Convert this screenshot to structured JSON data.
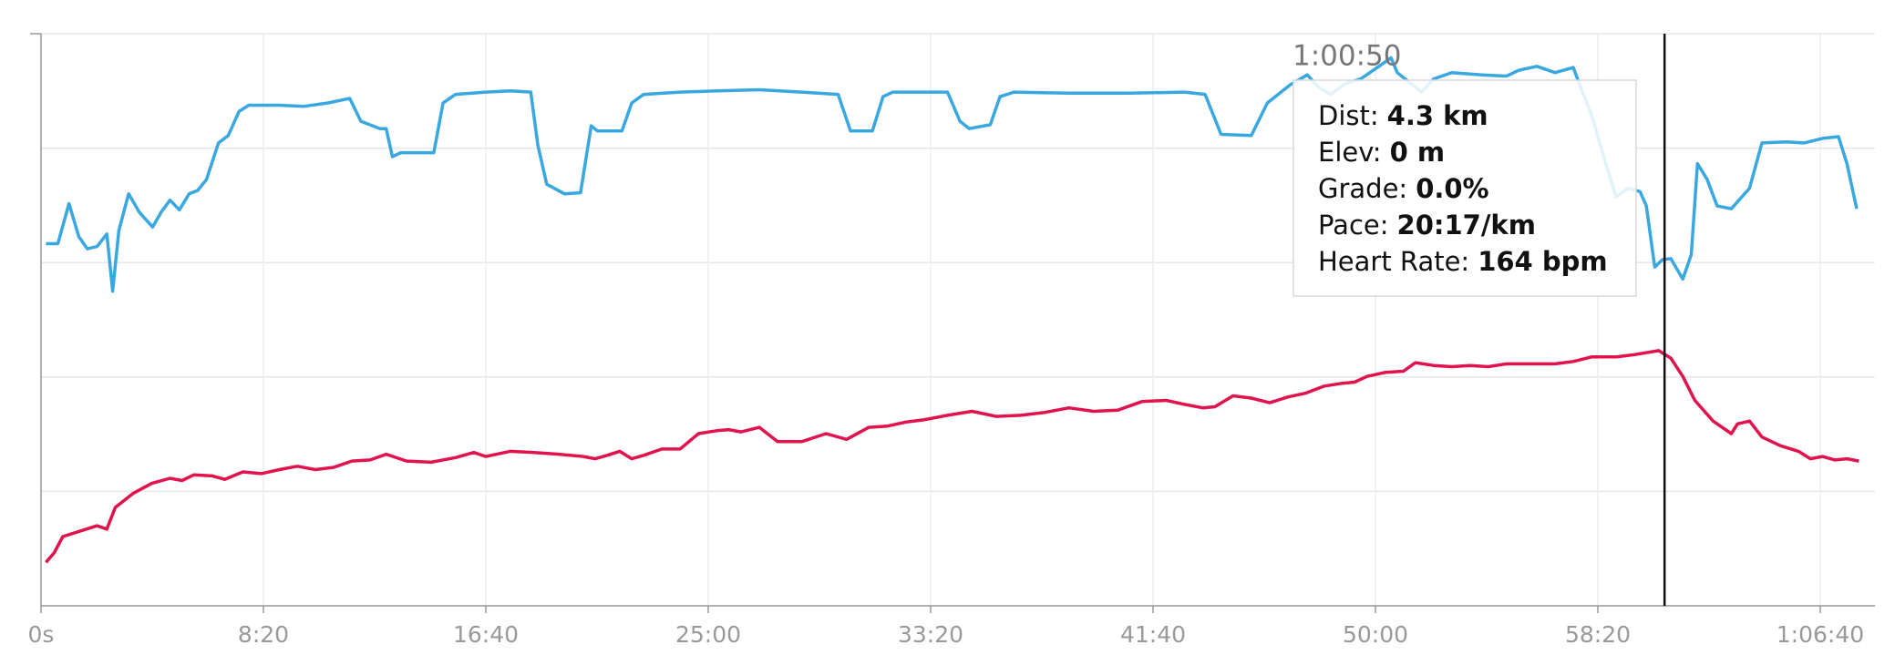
{
  "chart_data": {
    "type": "line",
    "xlim": [
      0,
      4123
    ],
    "ylim": [
      0,
      100
    ],
    "xticks": [
      {
        "value": 0,
        "label": "0s"
      },
      {
        "value": 500,
        "label": "8:20"
      },
      {
        "value": 1000,
        "label": "16:40"
      },
      {
        "value": 1500,
        "label": "25:00"
      },
      {
        "value": 2000,
        "label": "33:20"
      },
      {
        "value": 2500,
        "label": "41:40"
      },
      {
        "value": 3000,
        "label": "50:00"
      },
      {
        "value": 3500,
        "label": "58:20"
      },
      {
        "value": 4000,
        "label": "1:06:40"
      }
    ],
    "yticks": [
      0,
      20,
      40,
      60,
      80,
      100
    ],
    "grid": true,
    "series": [
      {
        "color": "#3aa8e0",
        "x": [
          11,
          38,
          63,
          85,
          104,
          126,
          148,
          161,
          175,
          197,
          221,
          251,
          270,
          290,
          311,
          333,
          352,
          372,
          399,
          421,
          445,
          467,
          536,
          590,
          645,
          694,
          719,
          762,
          776,
          790,
          809,
          883,
          904,
          932,
          1000,
          1055,
          1101,
          1117,
          1137,
          1177,
          1213,
          1237,
          1251,
          1306,
          1328,
          1355,
          1437,
          1519,
          1615,
          1710,
          1792,
          1820,
          1869,
          1893,
          1915,
          2038,
          2066,
          2087,
          2134,
          2156,
          2188,
          2311,
          2448,
          2571,
          2617,
          2653,
          2721,
          2757,
          2809,
          2847,
          2871,
          2899,
          2934,
          2967,
          3008,
          3035,
          3049,
          3076,
          3104,
          3131,
          3172,
          3240,
          3295,
          3322,
          3363,
          3404,
          3445,
          3459,
          3486,
          3514,
          3541,
          3568,
          3595,
          3609,
          3628,
          3645,
          3664,
          3691,
          3710,
          3724,
          3746,
          3768,
          3800,
          3841,
          3869,
          3923,
          3964,
          4005,
          4041,
          4060,
          4082
        ],
        "values": [
          63.3,
          63.3,
          70.3,
          64.5,
          62.4,
          62.8,
          65.0,
          55.0,
          65.6,
          72.0,
          68.8,
          66.2,
          68.8,
          70.9,
          69.2,
          72.0,
          72.6,
          74.5,
          80.9,
          82.2,
          86.4,
          87.5,
          87.5,
          87.3,
          87.9,
          88.7,
          84.7,
          83.4,
          83.4,
          78.5,
          79.2,
          79.2,
          87.9,
          89.4,
          89.8,
          90.0,
          89.8,
          80.5,
          73.7,
          72.0,
          72.2,
          83.9,
          83.0,
          83.0,
          87.9,
          89.4,
          89.8,
          90.0,
          90.2,
          89.8,
          89.4,
          83.0,
          83.0,
          89.0,
          89.8,
          89.8,
          84.7,
          83.4,
          84.1,
          89.0,
          89.8,
          89.6,
          89.6,
          89.8,
          89.4,
          82.4,
          82.2,
          87.9,
          91.1,
          92.8,
          90.7,
          89.4,
          91.3,
          92.1,
          94.3,
          95.8,
          93.2,
          91.5,
          89.8,
          92.1,
          93.2,
          92.8,
          92.6,
          93.6,
          94.3,
          93.2,
          94.1,
          91.1,
          85.8,
          78.3,
          71.5,
          73.0,
          72.4,
          69.9,
          59.2,
          60.5,
          60.7,
          57.1,
          61.4,
          77.3,
          74.5,
          69.9,
          69.4,
          73.0,
          80.9,
          81.1,
          80.9,
          81.7,
          82.0,
          77.3,
          69.4
        ]
      },
      {
        "color": "#e0134c",
        "x": [
          11,
          30,
          49,
          85,
          126,
          148,
          167,
          208,
          249,
          290,
          317,
          344,
          385,
          413,
          454,
          495,
          536,
          576,
          617,
          658,
          699,
          740,
          776,
          822,
          877,
          932,
          973,
          1000,
          1055,
          1109,
          1164,
          1219,
          1246,
          1273,
          1301,
          1328,
          1355,
          1396,
          1437,
          1478,
          1519,
          1546,
          1574,
          1615,
          1656,
          1710,
          1765,
          1811,
          1861,
          1902,
          1943,
          1984,
          2038,
          2093,
          2148,
          2202,
          2257,
          2311,
          2366,
          2421,
          2475,
          2530,
          2571,
          2612,
          2639,
          2680,
          2721,
          2762,
          2803,
          2844,
          2885,
          2926,
          2953,
          2981,
          3022,
          3063,
          3090,
          3131,
          3172,
          3213,
          3254,
          3295,
          3350,
          3404,
          3445,
          3486,
          3541,
          3582,
          3637,
          3664,
          3691,
          3718,
          3759,
          3800,
          3814,
          3841,
          3869,
          3910,
          3951,
          3978,
          4005,
          4033,
          4060,
          4087
        ],
        "values": [
          7.6,
          9.3,
          12.1,
          13.0,
          14.0,
          13.4,
          17.2,
          19.7,
          21.4,
          22.3,
          21.9,
          22.9,
          22.7,
          22.1,
          23.4,
          23.1,
          23.8,
          24.4,
          23.8,
          24.2,
          25.3,
          25.5,
          26.5,
          25.3,
          25.1,
          25.9,
          26.8,
          26.1,
          27.0,
          26.8,
          26.5,
          26.1,
          25.7,
          26.3,
          27.0,
          25.7,
          26.3,
          27.4,
          27.4,
          30.1,
          30.6,
          30.8,
          30.4,
          31.2,
          28.7,
          28.7,
          30.1,
          29.1,
          31.2,
          31.4,
          32.1,
          32.5,
          33.3,
          34.0,
          33.1,
          33.3,
          33.8,
          34.6,
          34.0,
          34.2,
          35.7,
          35.9,
          35.2,
          34.6,
          34.8,
          36.7,
          36.3,
          35.5,
          36.5,
          37.2,
          38.4,
          38.9,
          39.1,
          40.1,
          40.8,
          41.0,
          42.5,
          42.0,
          41.8,
          42.0,
          41.8,
          42.3,
          42.3,
          42.3,
          42.7,
          43.5,
          43.5,
          43.9,
          44.6,
          43.3,
          40.1,
          35.9,
          32.3,
          30.1,
          31.8,
          32.3,
          29.5,
          28.0,
          27.0,
          25.7,
          26.1,
          25.5,
          25.7,
          25.3
        ]
      }
    ],
    "cursor_x": 3650,
    "tooltip": {
      "title": "1:00:50",
      "rows": [
        {
          "label": "Dist:",
          "value": "4.3 km"
        },
        {
          "label": "Elev:",
          "value": "0 m"
        },
        {
          "label": "Grade:",
          "value": "0.0%"
        },
        {
          "label": "Pace:",
          "value": "20:17/km"
        },
        {
          "label": "Heart Rate:",
          "value": "164 bpm"
        }
      ]
    }
  }
}
